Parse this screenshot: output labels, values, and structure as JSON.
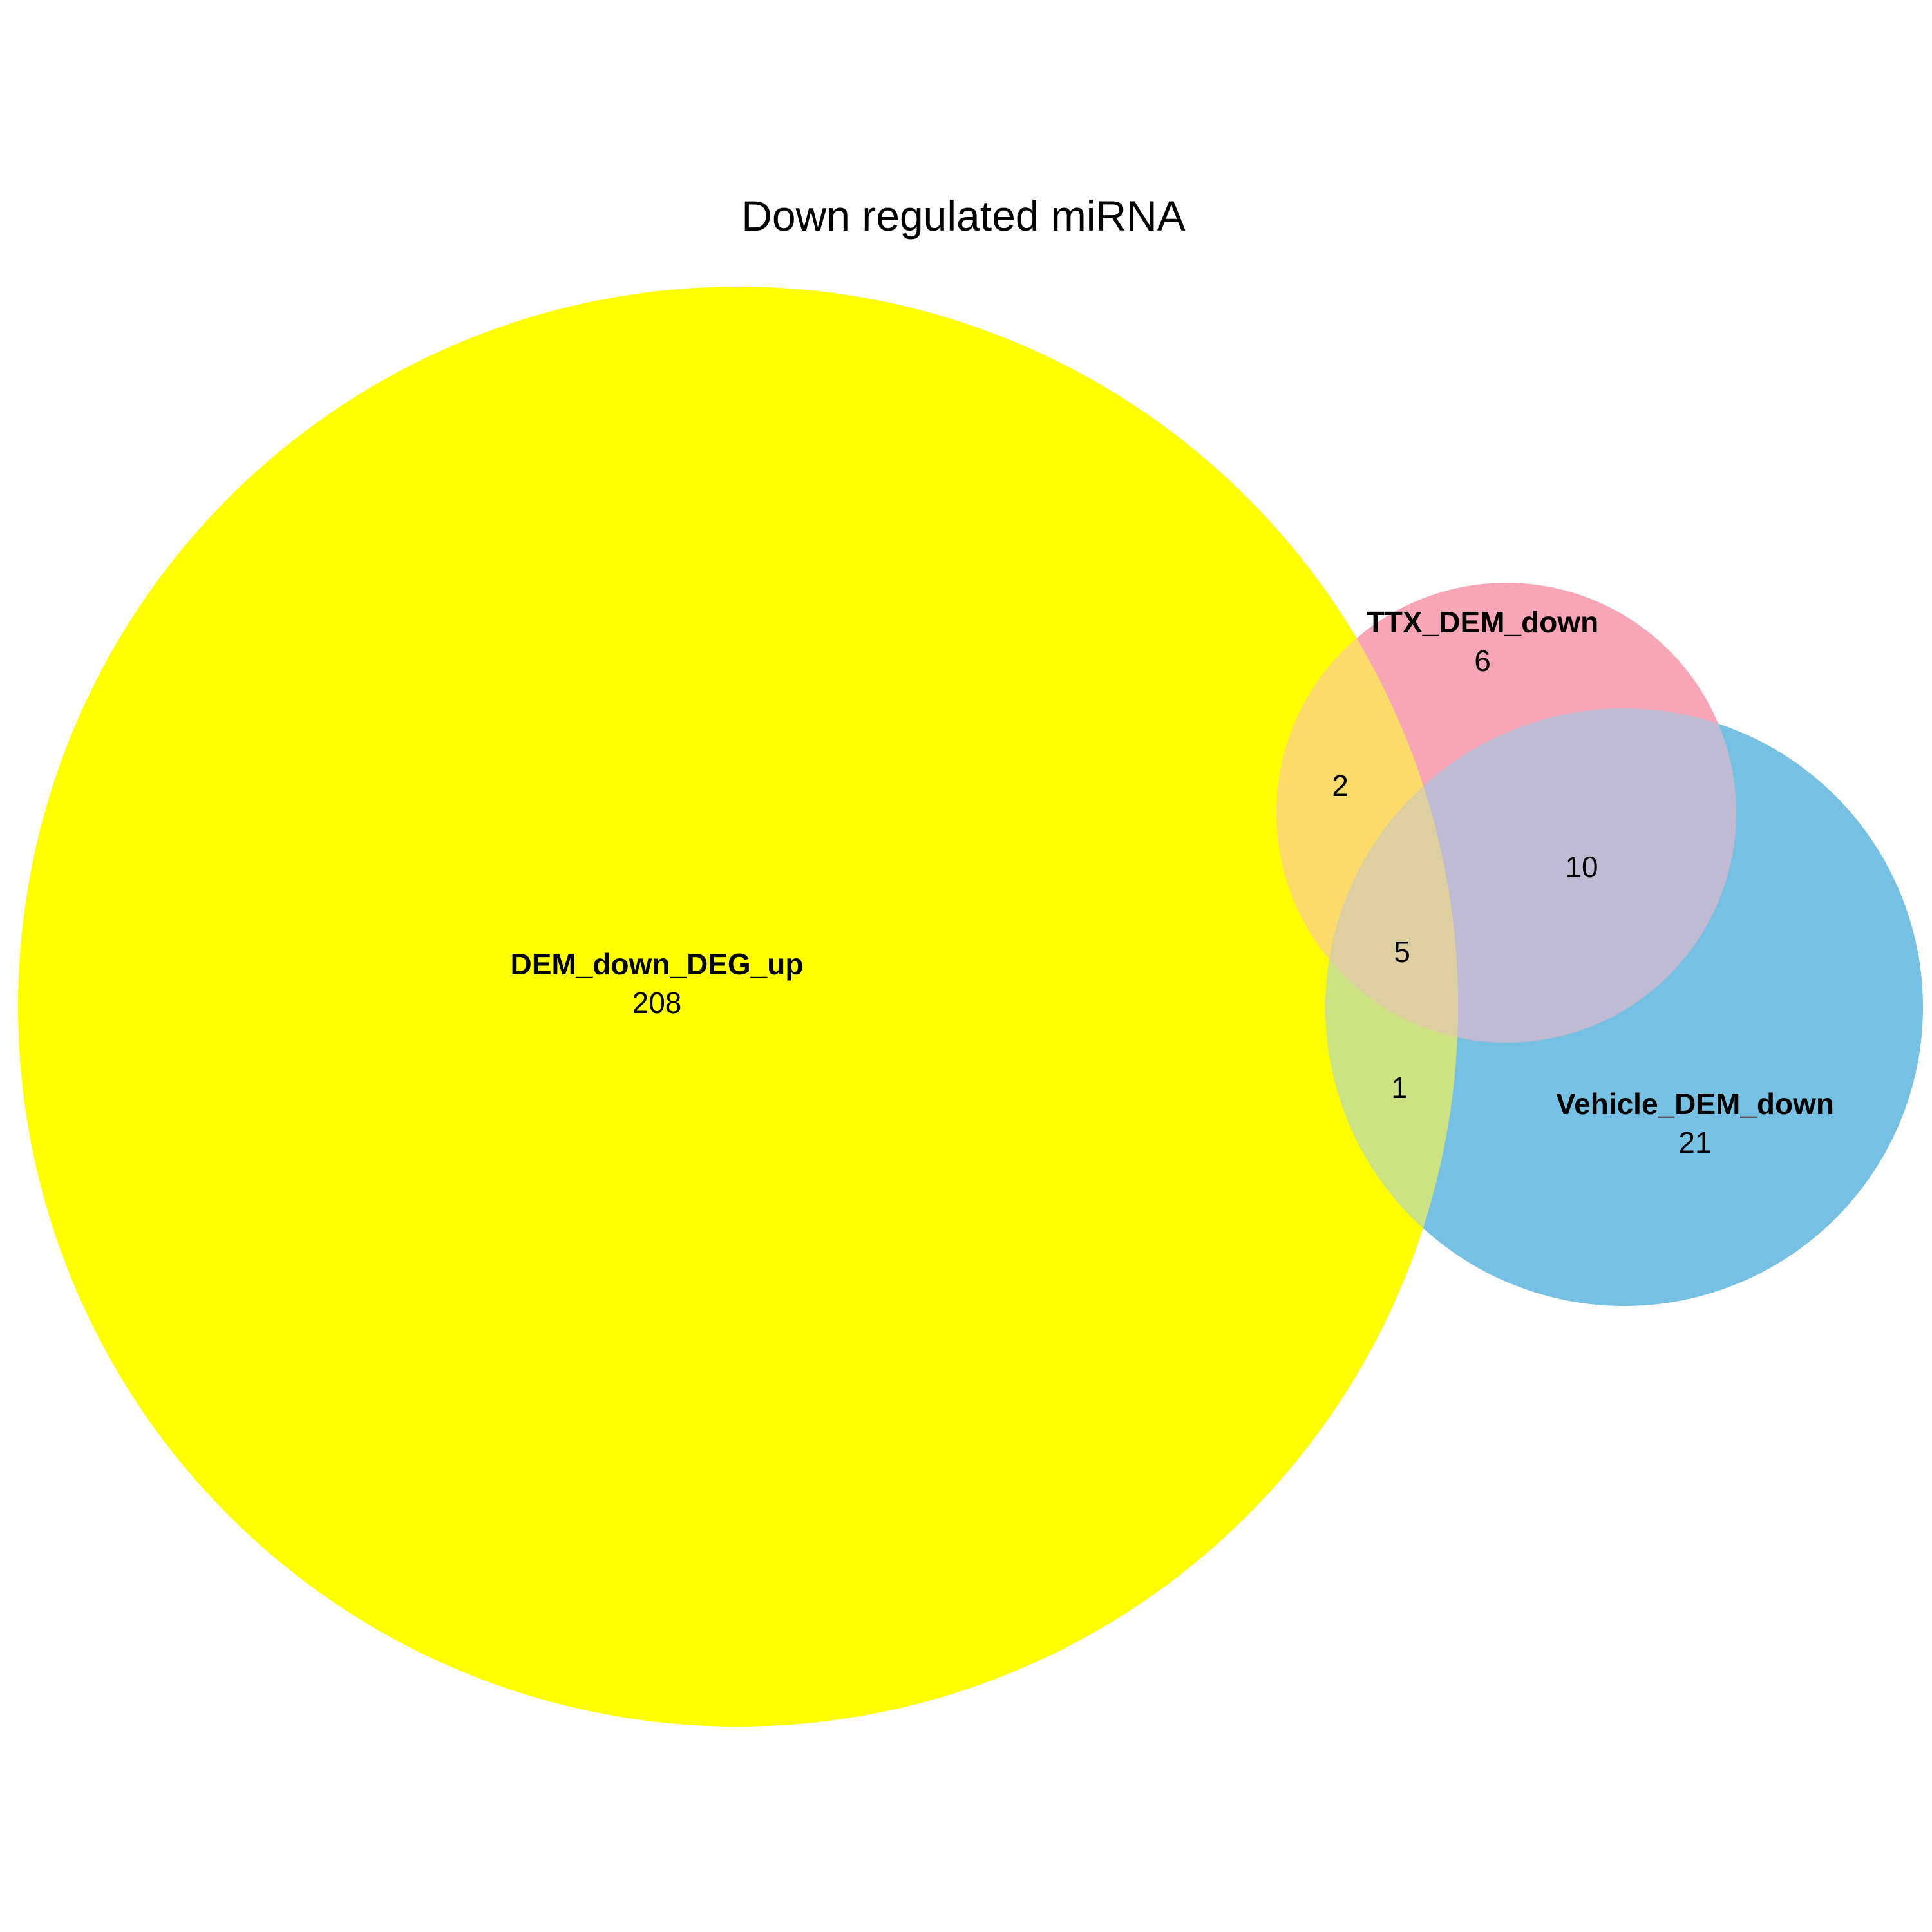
{
  "diagram": {
    "title": "Down regulated miRNA",
    "sets": [
      {
        "name": "DEM_down_DEG_up",
        "count": "208",
        "color": "#ffff00"
      },
      {
        "name": "TTX_DEM_down",
        "count": "6",
        "color": "#f8a5b6"
      },
      {
        "name": "Vehicle_DEM_down",
        "count": "21",
        "color": "#76c1e3"
      }
    ],
    "intersections": {
      "dem_ttx": "2",
      "ttx_vehicle": "10",
      "all_three": "5",
      "dem_vehicle": "1"
    }
  }
}
